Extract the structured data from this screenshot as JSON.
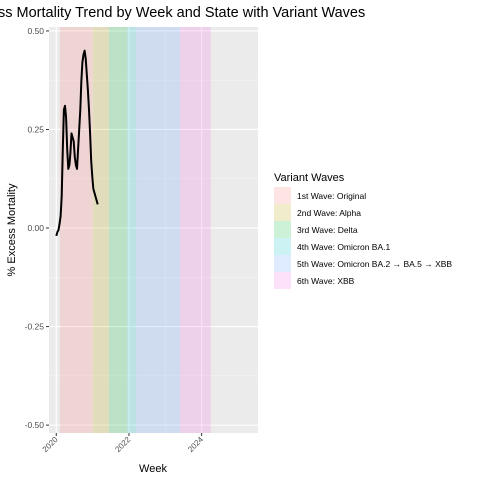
{
  "chart_data": {
    "type": "line",
    "title": "ss Mortality Trend by Week and State with Variant Waves",
    "xlabel": "Week",
    "ylabel": "% Excess Mortality",
    "xlim": [
      2019.8,
      2025.55
    ],
    "ylim": [
      -0.52,
      0.51
    ],
    "x_ticks": [
      2020,
      2022,
      2024
    ],
    "x_tick_labels": [
      "2020",
      "2022",
      "2024"
    ],
    "y_ticks": [
      -0.5,
      -0.25,
      0.0,
      0.25,
      0.5
    ],
    "y_tick_labels": [
      "-0.50",
      "-0.25",
      "0.00",
      "0.25",
      "0.50"
    ],
    "grid": true,
    "legend": {
      "title": "Variant Waves",
      "position": "right",
      "entries": [
        {
          "label": "1st Wave: Original",
          "color": "#F8766D"
        },
        {
          "label": "2nd Wave: Alpha",
          "color": "#B79F00"
        },
        {
          "label": "3rd Wave: Delta",
          "color": "#00BA38"
        },
        {
          "label": "4th Wave: Omicron BA.1",
          "color": "#00BFC4"
        },
        {
          "label": "5th Wave: Omicron BA.2 → BA.5 → XBB",
          "color": "#619CFF"
        },
        {
          "label": "6th Wave: XBB",
          "color": "#F564E3"
        }
      ]
    },
    "waves": [
      {
        "name": "1st Wave: Original",
        "start": 2020.1,
        "end": 2021.0,
        "color": "#F8766D"
      },
      {
        "name": "2nd Wave: Alpha",
        "start": 2021.0,
        "end": 2021.45,
        "color": "#B79F00"
      },
      {
        "name": "3rd Wave: Delta",
        "start": 2021.45,
        "end": 2021.95,
        "color": "#00BA38"
      },
      {
        "name": "4th Wave: Omicron BA.1",
        "start": 2021.95,
        "end": 2022.2,
        "color": "#00BFC4"
      },
      {
        "name": "5th Wave: Omicron BA.2 → BA.5 → XBB",
        "start": 2022.2,
        "end": 2023.4,
        "color": "#619CFF"
      },
      {
        "name": "6th Wave: XBB",
        "start": 2023.4,
        "end": 2024.25,
        "color": "#F564E3"
      }
    ],
    "series": [
      {
        "x": [
          2020.0,
          2020.03,
          2020.06,
          2020.09,
          2020.12,
          2020.15,
          2020.18,
          2020.21,
          2020.24,
          2020.27,
          2020.3,
          2020.33,
          2020.36,
          2020.39,
          2020.42,
          2020.45,
          2020.48,
          2020.51,
          2020.54,
          2020.57,
          2020.6,
          2020.63,
          2020.66,
          2020.69,
          2020.72,
          2020.75,
          2020.78,
          2020.81,
          2020.84,
          2020.87,
          2020.9,
          2020.93,
          2020.96,
          2020.99,
          2021.02,
          2021.05,
          2021.08,
          2021.11,
          2021.14
        ],
        "y": [
          -0.02,
          -0.01,
          -0.005,
          0.01,
          0.03,
          0.08,
          0.2,
          0.3,
          0.31,
          0.28,
          0.2,
          0.15,
          0.16,
          0.19,
          0.24,
          0.23,
          0.22,
          0.18,
          0.16,
          0.15,
          0.2,
          0.25,
          0.3,
          0.37,
          0.42,
          0.44,
          0.45,
          0.43,
          0.39,
          0.35,
          0.3,
          0.24,
          0.17,
          0.13,
          0.1,
          0.09,
          0.08,
          0.07,
          0.06
        ]
      }
    ]
  }
}
